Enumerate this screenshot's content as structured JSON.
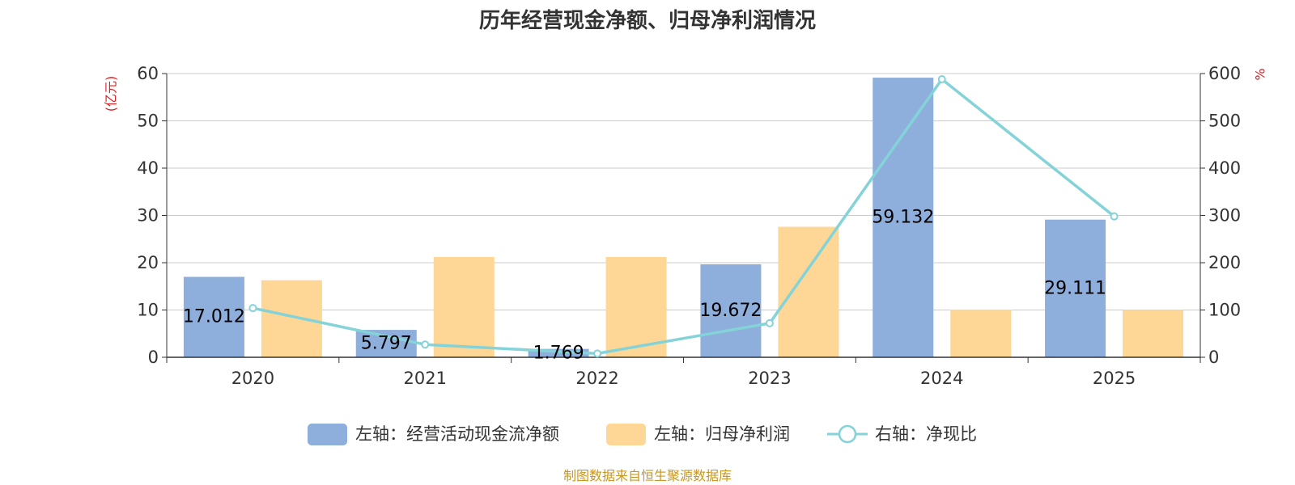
{
  "chart_data": {
    "type": "bar",
    "title": "历年经营现金净额、归母净利润情况",
    "categories": [
      "2020",
      "2021",
      "2022",
      "2023",
      "2024",
      "2025"
    ],
    "left_axis": {
      "unit": "(亿元)",
      "ylim": [
        0,
        60
      ],
      "ticks": [
        "0",
        "10",
        "20",
        "30",
        "40",
        "50",
        "60"
      ]
    },
    "right_axis": {
      "unit": "%",
      "ylim": [
        0,
        600
      ],
      "ticks": [
        "0",
        "100",
        "200",
        "300",
        "400",
        "500",
        "600"
      ]
    },
    "series": [
      {
        "name": "左轴：经营活动现金流净额",
        "type": "bar",
        "axis": "left",
        "color": "#8eaedb",
        "values": [
          17.012,
          5.797,
          1.769,
          19.672,
          59.132,
          29.111
        ],
        "labels": [
          "17.012",
          "5.797",
          "1.769",
          "19.672",
          "59.132",
          "29.111"
        ]
      },
      {
        "name": "左轴：归母净利润",
        "type": "bar",
        "axis": "left",
        "color": "#fed797",
        "values": [
          16.3,
          21.2,
          21.2,
          27.6,
          10.1,
          10.0
        ]
      },
      {
        "name": "右轴：净现比",
        "type": "line",
        "axis": "right",
        "color": "#83d3d8",
        "values": [
          104,
          27,
          8,
          72,
          588,
          298
        ]
      }
    ],
    "grid": true,
    "legend": "bottom",
    "source": "制图数据来自恒生聚源数据库"
  }
}
